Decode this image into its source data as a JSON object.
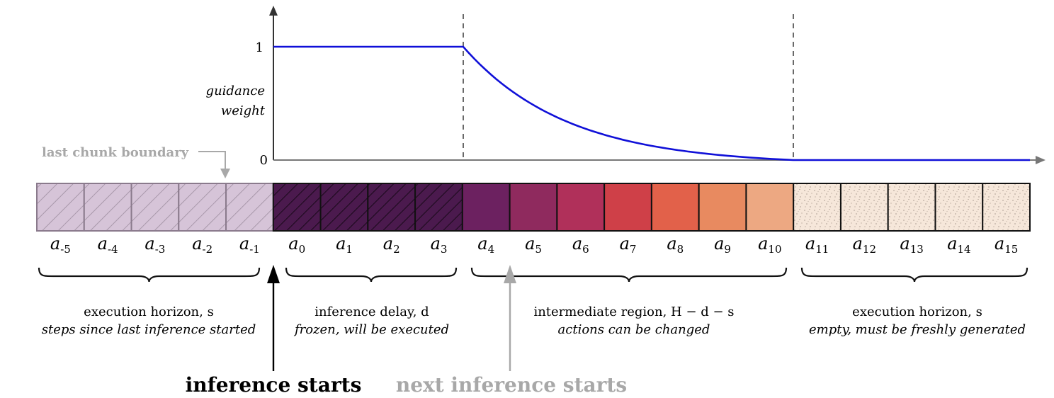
{
  "plot": {
    "ylabel_line1": "guidance",
    "ylabel_line2": "weight",
    "ytick_top": "1",
    "ytick_bottom": "0",
    "curve_color": "#1010d8"
  },
  "chunk_boundary_label": "last chunk boundary",
  "cells": [
    {
      "sym": "a",
      "sub": "-5"
    },
    {
      "sym": "a",
      "sub": "-4"
    },
    {
      "sym": "a",
      "sub": "-3"
    },
    {
      "sym": "a",
      "sub": "-2"
    },
    {
      "sym": "a",
      "sub": "-1"
    },
    {
      "sym": "a",
      "sub": "0"
    },
    {
      "sym": "a",
      "sub": "1"
    },
    {
      "sym": "a",
      "sub": "2"
    },
    {
      "sym": "a",
      "sub": "3"
    },
    {
      "sym": "a",
      "sub": "4"
    },
    {
      "sym": "a",
      "sub": "5"
    },
    {
      "sym": "a",
      "sub": "6"
    },
    {
      "sym": "a",
      "sub": "7"
    },
    {
      "sym": "a",
      "sub": "8"
    },
    {
      "sym": "a",
      "sub": "9"
    },
    {
      "sym": "a",
      "sub": "10"
    },
    {
      "sym": "a",
      "sub": "11"
    },
    {
      "sym": "a",
      "sub": "12"
    },
    {
      "sym": "a",
      "sub": "13"
    },
    {
      "sym": "a",
      "sub": "14"
    },
    {
      "sym": "a",
      "sub": "15"
    }
  ],
  "colors": {
    "past": "#d6c4d8",
    "past_border": "#8a7a8c",
    "frozen": "#4b1a4e",
    "gradient": [
      "#6c2160",
      "#8f2a5e",
      "#b0305a",
      "#cf4048",
      "#e2614a",
      "#e88a60",
      "#eda882"
    ],
    "future": "#f6e7da"
  },
  "regions": [
    {
      "line1": "execution horizon, s",
      "line2": "steps since last inference started"
    },
    {
      "line1": "inference delay, d",
      "line2": "frozen, will be executed"
    },
    {
      "line1": "intermediate region, H − d − s",
      "line2": "actions can be changed"
    },
    {
      "line1": "execution horizon, s",
      "line2": "empty, must be freshly generated"
    }
  ],
  "inference_starts": "inference starts",
  "next_inference_starts": "next inference starts"
}
